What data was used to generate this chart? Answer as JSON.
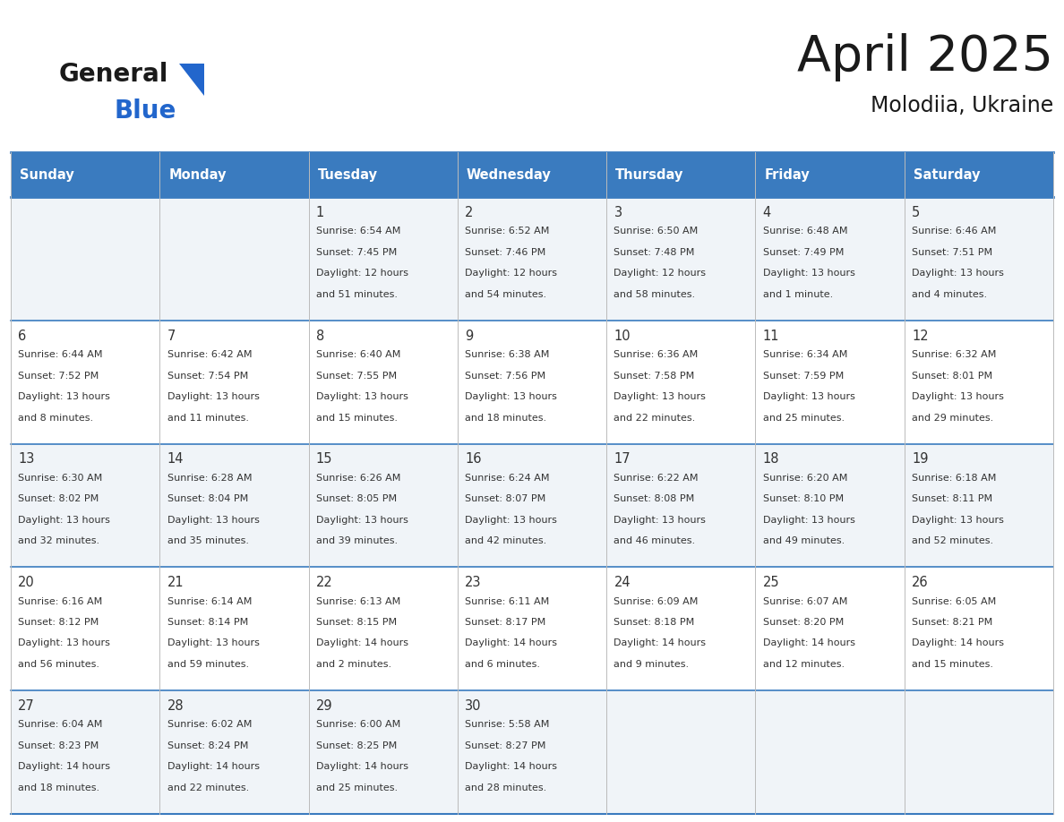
{
  "title": "April 2025",
  "subtitle": "Molodiia, Ukraine",
  "header_bg_color": "#3a7bbf",
  "header_text_color": "#ffffff",
  "row_bg_colors": [
    "#f0f4f8",
    "#ffffff"
  ],
  "separator_color": "#3a7bbf",
  "day_headers": [
    "Sunday",
    "Monday",
    "Tuesday",
    "Wednesday",
    "Thursday",
    "Friday",
    "Saturday"
  ],
  "days": [
    {
      "day": 1,
      "col": 2,
      "row": 0,
      "sunrise": "6:54 AM",
      "sunset": "7:45 PM",
      "daylight": "12 hours",
      "daylight2": "and 51 minutes."
    },
    {
      "day": 2,
      "col": 3,
      "row": 0,
      "sunrise": "6:52 AM",
      "sunset": "7:46 PM",
      "daylight": "12 hours",
      "daylight2": "and 54 minutes."
    },
    {
      "day": 3,
      "col": 4,
      "row": 0,
      "sunrise": "6:50 AM",
      "sunset": "7:48 PM",
      "daylight": "12 hours",
      "daylight2": "and 58 minutes."
    },
    {
      "day": 4,
      "col": 5,
      "row": 0,
      "sunrise": "6:48 AM",
      "sunset": "7:49 PM",
      "daylight": "13 hours",
      "daylight2": "and 1 minute."
    },
    {
      "day": 5,
      "col": 6,
      "row": 0,
      "sunrise": "6:46 AM",
      "sunset": "7:51 PM",
      "daylight": "13 hours",
      "daylight2": "and 4 minutes."
    },
    {
      "day": 6,
      "col": 0,
      "row": 1,
      "sunrise": "6:44 AM",
      "sunset": "7:52 PM",
      "daylight": "13 hours",
      "daylight2": "and 8 minutes."
    },
    {
      "day": 7,
      "col": 1,
      "row": 1,
      "sunrise": "6:42 AM",
      "sunset": "7:54 PM",
      "daylight": "13 hours",
      "daylight2": "and 11 minutes."
    },
    {
      "day": 8,
      "col": 2,
      "row": 1,
      "sunrise": "6:40 AM",
      "sunset": "7:55 PM",
      "daylight": "13 hours",
      "daylight2": "and 15 minutes."
    },
    {
      "day": 9,
      "col": 3,
      "row": 1,
      "sunrise": "6:38 AM",
      "sunset": "7:56 PM",
      "daylight": "13 hours",
      "daylight2": "and 18 minutes."
    },
    {
      "day": 10,
      "col": 4,
      "row": 1,
      "sunrise": "6:36 AM",
      "sunset": "7:58 PM",
      "daylight": "13 hours",
      "daylight2": "and 22 minutes."
    },
    {
      "day": 11,
      "col": 5,
      "row": 1,
      "sunrise": "6:34 AM",
      "sunset": "7:59 PM",
      "daylight": "13 hours",
      "daylight2": "and 25 minutes."
    },
    {
      "day": 12,
      "col": 6,
      "row": 1,
      "sunrise": "6:32 AM",
      "sunset": "8:01 PM",
      "daylight": "13 hours",
      "daylight2": "and 29 minutes."
    },
    {
      "day": 13,
      "col": 0,
      "row": 2,
      "sunrise": "6:30 AM",
      "sunset": "8:02 PM",
      "daylight": "13 hours",
      "daylight2": "and 32 minutes."
    },
    {
      "day": 14,
      "col": 1,
      "row": 2,
      "sunrise": "6:28 AM",
      "sunset": "8:04 PM",
      "daylight": "13 hours",
      "daylight2": "and 35 minutes."
    },
    {
      "day": 15,
      "col": 2,
      "row": 2,
      "sunrise": "6:26 AM",
      "sunset": "8:05 PM",
      "daylight": "13 hours",
      "daylight2": "and 39 minutes."
    },
    {
      "day": 16,
      "col": 3,
      "row": 2,
      "sunrise": "6:24 AM",
      "sunset": "8:07 PM",
      "daylight": "13 hours",
      "daylight2": "and 42 minutes."
    },
    {
      "day": 17,
      "col": 4,
      "row": 2,
      "sunrise": "6:22 AM",
      "sunset": "8:08 PM",
      "daylight": "13 hours",
      "daylight2": "and 46 minutes."
    },
    {
      "day": 18,
      "col": 5,
      "row": 2,
      "sunrise": "6:20 AM",
      "sunset": "8:10 PM",
      "daylight": "13 hours",
      "daylight2": "and 49 minutes."
    },
    {
      "day": 19,
      "col": 6,
      "row": 2,
      "sunrise": "6:18 AM",
      "sunset": "8:11 PM",
      "daylight": "13 hours",
      "daylight2": "and 52 minutes."
    },
    {
      "day": 20,
      "col": 0,
      "row": 3,
      "sunrise": "6:16 AM",
      "sunset": "8:12 PM",
      "daylight": "13 hours",
      "daylight2": "and 56 minutes."
    },
    {
      "day": 21,
      "col": 1,
      "row": 3,
      "sunrise": "6:14 AM",
      "sunset": "8:14 PM",
      "daylight": "13 hours",
      "daylight2": "and 59 minutes."
    },
    {
      "day": 22,
      "col": 2,
      "row": 3,
      "sunrise": "6:13 AM",
      "sunset": "8:15 PM",
      "daylight": "14 hours",
      "daylight2": "and 2 minutes."
    },
    {
      "day": 23,
      "col": 3,
      "row": 3,
      "sunrise": "6:11 AM",
      "sunset": "8:17 PM",
      "daylight": "14 hours",
      "daylight2": "and 6 minutes."
    },
    {
      "day": 24,
      "col": 4,
      "row": 3,
      "sunrise": "6:09 AM",
      "sunset": "8:18 PM",
      "daylight": "14 hours",
      "daylight2": "and 9 minutes."
    },
    {
      "day": 25,
      "col": 5,
      "row": 3,
      "sunrise": "6:07 AM",
      "sunset": "8:20 PM",
      "daylight": "14 hours",
      "daylight2": "and 12 minutes."
    },
    {
      "day": 26,
      "col": 6,
      "row": 3,
      "sunrise": "6:05 AM",
      "sunset": "8:21 PM",
      "daylight": "14 hours",
      "daylight2": "and 15 minutes."
    },
    {
      "day": 27,
      "col": 0,
      "row": 4,
      "sunrise": "6:04 AM",
      "sunset": "8:23 PM",
      "daylight": "14 hours",
      "daylight2": "and 18 minutes."
    },
    {
      "day": 28,
      "col": 1,
      "row": 4,
      "sunrise": "6:02 AM",
      "sunset": "8:24 PM",
      "daylight": "14 hours",
      "daylight2": "and 22 minutes."
    },
    {
      "day": 29,
      "col": 2,
      "row": 4,
      "sunrise": "6:00 AM",
      "sunset": "8:25 PM",
      "daylight": "14 hours",
      "daylight2": "and 25 minutes."
    },
    {
      "day": 30,
      "col": 3,
      "row": 4,
      "sunrise": "5:58 AM",
      "sunset": "8:27 PM",
      "daylight": "14 hours",
      "daylight2": "and 28 minutes."
    }
  ],
  "figsize": [
    11.88,
    9.18
  ],
  "dpi": 100,
  "logo_general_color": "#1a1a1a",
  "logo_blue_color": "#2266cc",
  "logo_triangle_color": "#2266cc",
  "title_color": "#1a1a1a",
  "subtitle_color": "#1a1a1a",
  "text_color": "#333333"
}
